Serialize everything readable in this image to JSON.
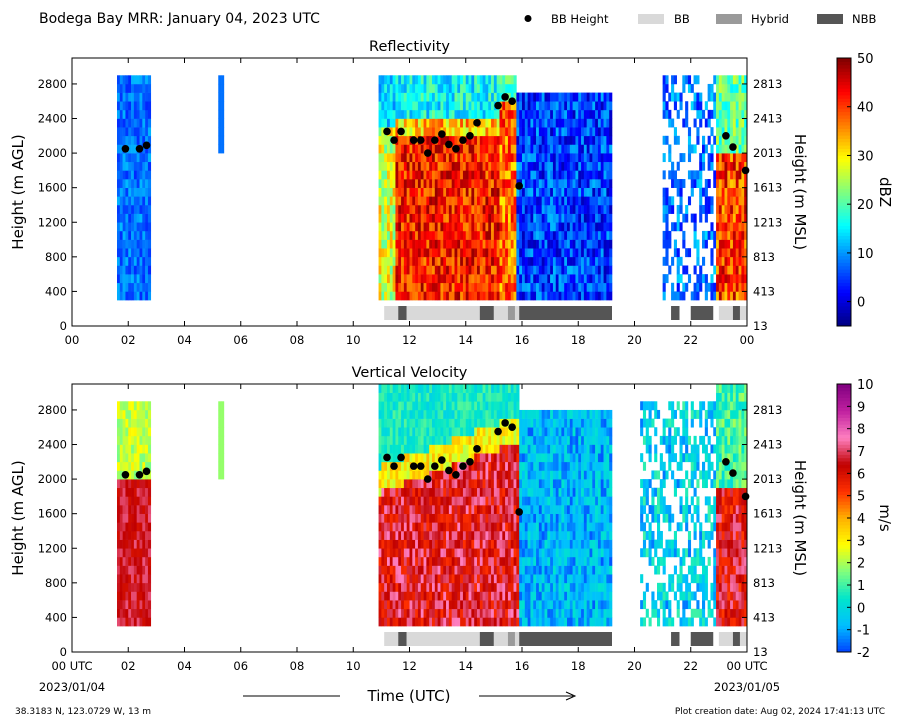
{
  "header": {
    "title": "Bodega Bay MRR:  January 04, 2023 UTC",
    "legend": [
      {
        "label": "BB Height",
        "kind": "dot",
        "color": "#000000"
      },
      {
        "label": "BB",
        "kind": "patch",
        "color": "#d9d9d9"
      },
      {
        "label": "Hybrid",
        "kind": "patch",
        "color": "#9a9a9a"
      },
      {
        "label": "NBB",
        "kind": "patch",
        "color": "#555555"
      }
    ]
  },
  "chart_data": [
    {
      "type": "heatmap",
      "title": "Reflectivity",
      "xlabel": "",
      "ylabel": "Height (m AGL)",
      "ylabel_right": "Height (m MSL)",
      "x_ticks": [
        "00",
        "02",
        "04",
        "06",
        "08",
        "10",
        "12",
        "14",
        "16",
        "18",
        "20",
        "22",
        "00"
      ],
      "y_ticks": [
        0,
        400,
        800,
        1200,
        1600,
        2000,
        2400,
        2800
      ],
      "y_ticks_right": [
        "13",
        "413",
        "813",
        "1213",
        "1613",
        "2013",
        "2413",
        "2813"
      ],
      "xlim": [
        0,
        24
      ],
      "ylim": [
        0,
        3100
      ],
      "colorbar": {
        "label": "dBZ",
        "ticks": [
          0,
          10,
          20,
          30,
          40,
          50
        ],
        "range": [
          -5,
          50
        ],
        "colors": [
          "#00007f",
          "#0000ff",
          "#007fff",
          "#00ffff",
          "#7fff7f",
          "#ffff00",
          "#ff7f00",
          "#ff0000",
          "#7f0000"
        ]
      },
      "bb_height": [
        [
          1.9,
          2050
        ],
        [
          2.4,
          2050
        ],
        [
          2.65,
          2090
        ],
        [
          11.2,
          2250
        ],
        [
          11.45,
          2150
        ],
        [
          11.7,
          2250
        ],
        [
          12.15,
          2150
        ],
        [
          12.4,
          2150
        ],
        [
          12.65,
          2000
        ],
        [
          12.9,
          2150
        ],
        [
          13.15,
          2220
        ],
        [
          13.4,
          2100
        ],
        [
          13.65,
          2050
        ],
        [
          13.9,
          2150
        ],
        [
          14.15,
          2200
        ],
        [
          14.4,
          2350
        ],
        [
          15.15,
          2550
        ],
        [
          15.4,
          2650
        ],
        [
          15.65,
          2600
        ],
        [
          15.9,
          1620
        ],
        [
          23.25,
          2200
        ],
        [
          23.5,
          2070
        ],
        [
          23.95,
          1800
        ]
      ],
      "bb_type_bar": [
        [
          11.1,
          11.6,
          "BB"
        ],
        [
          11.6,
          11.9,
          "NBB"
        ],
        [
          11.9,
          14.5,
          "BB"
        ],
        [
          14.5,
          15.0,
          "NBB"
        ],
        [
          15.0,
          15.5,
          "BB"
        ],
        [
          15.5,
          15.75,
          "Hybrid"
        ],
        [
          15.75,
          15.9,
          "BB"
        ],
        [
          15.9,
          19.2,
          "NBB"
        ],
        [
          21.3,
          21.6,
          "NBB"
        ],
        [
          22.0,
          22.8,
          "NBB"
        ],
        [
          23.0,
          23.5,
          "BB"
        ],
        [
          23.5,
          23.75,
          "NBB"
        ],
        [
          23.75,
          24.0,
          "BB"
        ]
      ]
    },
    {
      "type": "heatmap",
      "title": "Vertical Velocity",
      "xlabel": "Time (UTC)",
      "ylabel": "Height (m AGL)",
      "ylabel_right": "Height (m MSL)",
      "x_ticks": [
        "00 UTC",
        "02",
        "04",
        "06",
        "08",
        "10",
        "12",
        "14",
        "16",
        "18",
        "20",
        "22",
        "00 UTC"
      ],
      "x_subticks_left": "2023/01/04",
      "x_subticks_right": "2023/01/05",
      "y_ticks": [
        0,
        400,
        800,
        1200,
        1600,
        2000,
        2400,
        2800
      ],
      "y_ticks_right": [
        "13",
        "413",
        "813",
        "1213",
        "1613",
        "2013",
        "2413",
        "2813"
      ],
      "xlim": [
        0,
        24
      ],
      "ylim": [
        0,
        3100
      ],
      "colorbar": {
        "label": "m/s",
        "ticks": [
          -2,
          -1,
          0,
          1,
          2,
          3,
          4,
          5,
          6,
          7,
          8,
          9,
          10
        ],
        "range": [
          -2,
          10
        ],
        "colors": [
          "#0040ff",
          "#00bfff",
          "#00e5cc",
          "#7fff7f",
          "#ffff00",
          "#ffb000",
          "#ff3000",
          "#c00000",
          "#ff80c0",
          "#c020a0",
          "#800080"
        ]
      },
      "bb_height": [
        [
          1.9,
          2050
        ],
        [
          2.4,
          2050
        ],
        [
          2.65,
          2090
        ],
        [
          11.2,
          2250
        ],
        [
          11.45,
          2150
        ],
        [
          11.7,
          2250
        ],
        [
          12.15,
          2150
        ],
        [
          12.4,
          2150
        ],
        [
          12.65,
          2000
        ],
        [
          12.9,
          2150
        ],
        [
          13.15,
          2220
        ],
        [
          13.4,
          2100
        ],
        [
          13.65,
          2050
        ],
        [
          13.9,
          2150
        ],
        [
          14.15,
          2200
        ],
        [
          14.4,
          2350
        ],
        [
          15.15,
          2550
        ],
        [
          15.4,
          2650
        ],
        [
          15.65,
          2600
        ],
        [
          15.9,
          1620
        ],
        [
          23.25,
          2200
        ],
        [
          23.5,
          2070
        ],
        [
          23.95,
          1800
        ]
      ],
      "bb_type_bar": [
        [
          11.1,
          11.6,
          "BB"
        ],
        [
          11.6,
          11.9,
          "NBB"
        ],
        [
          11.9,
          14.5,
          "BB"
        ],
        [
          14.5,
          15.0,
          "NBB"
        ],
        [
          15.0,
          15.5,
          "BB"
        ],
        [
          15.5,
          15.75,
          "Hybrid"
        ],
        [
          15.75,
          15.9,
          "BB"
        ],
        [
          15.9,
          19.2,
          "NBB"
        ],
        [
          21.3,
          21.6,
          "NBB"
        ],
        [
          22.0,
          22.8,
          "NBB"
        ],
        [
          23.0,
          23.5,
          "BB"
        ],
        [
          23.5,
          23.75,
          "NBB"
        ],
        [
          23.75,
          24.0,
          "BB"
        ]
      ]
    }
  ],
  "footer": {
    "location": "38.3183 N, 123.0729 W, 13 m",
    "creation": "Plot creation date: Aug 02, 2024 17:41:13 UTC"
  }
}
